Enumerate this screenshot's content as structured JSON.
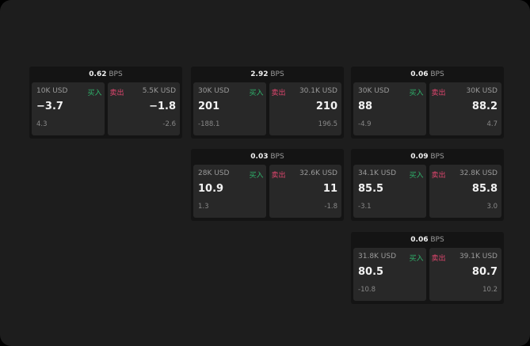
{
  "colors": {
    "buy": "#2fb36b",
    "sell": "#e0466e",
    "background": "#1d1d1d",
    "card": "#282828"
  },
  "unit": "BPS",
  "buy_label": "买入",
  "sell_label": "卖出",
  "groups": [
    {
      "spread": "0.62",
      "bid": {
        "qty": "10K USD",
        "price": "−3.7",
        "change": "4.3"
      },
      "ask": {
        "qty": "5.5K USD",
        "price": "−1.8",
        "change": "-2.6"
      }
    },
    {
      "spread": "2.92",
      "bid": {
        "qty": "30K USD",
        "price": "201",
        "change": "-188.1"
      },
      "ask": {
        "qty": "30.1K USD",
        "price": "210",
        "change": "196.5"
      }
    },
    {
      "spread": "0.06",
      "bid": {
        "qty": "30K USD",
        "price": "88",
        "change": "-4.9"
      },
      "ask": {
        "qty": "30K USD",
        "price": "88.2",
        "change": "4.7"
      }
    },
    {
      "spread": "0.03",
      "bid": {
        "qty": "28K USD",
        "price": "10.9",
        "change": "1.3"
      },
      "ask": {
        "qty": "32.6K USD",
        "price": "11",
        "change": "-1.8"
      }
    },
    {
      "spread": "0.09",
      "bid": {
        "qty": "34.1K USD",
        "price": "85.5",
        "change": "-3.1"
      },
      "ask": {
        "qty": "32.8K USD",
        "price": "85.8",
        "change": "3.0"
      }
    },
    {
      "spread": "0.06",
      "bid": {
        "qty": "31.8K USD",
        "price": "80.5",
        "change": "-10.8"
      },
      "ask": {
        "qty": "39.1K USD",
        "price": "80.7",
        "change": "10.2"
      }
    }
  ]
}
